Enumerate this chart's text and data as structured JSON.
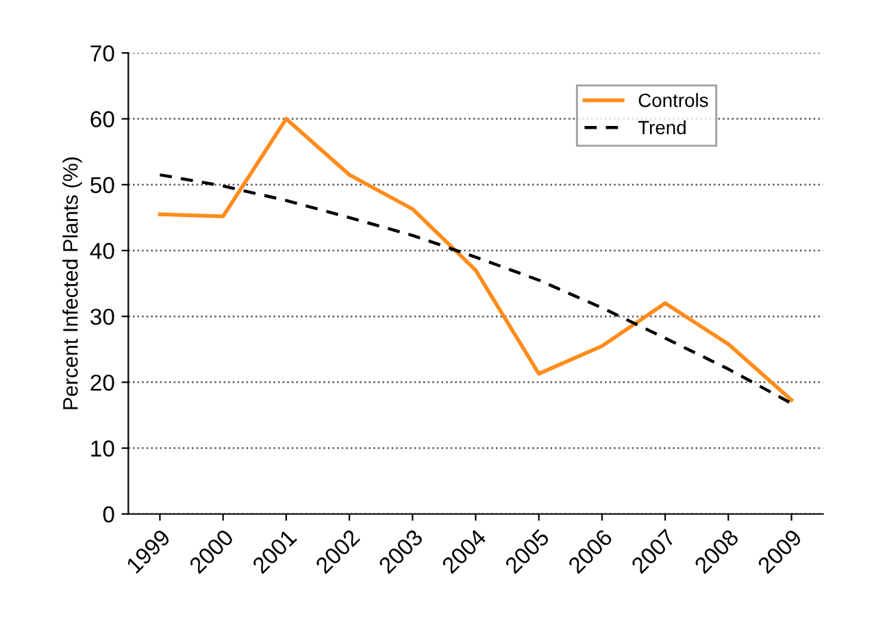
{
  "chart_data": {
    "type": "line",
    "ylabel": "Percent Infected Plants (%)",
    "categories": [
      "1999",
      "2000",
      "2001",
      "2002",
      "2003",
      "2004",
      "2005",
      "2006",
      "2007",
      "2008",
      "2009"
    ],
    "series": [
      {
        "name": "Controls",
        "color": "#ff8c1a",
        "line_style": "solid",
        "values": [
          45.5,
          45.2,
          60,
          51.5,
          46.3,
          37,
          21.3,
          25.5,
          32,
          25.8,
          17.3
        ]
      },
      {
        "name": "Trend",
        "color": "#000000",
        "line_style": "dashed",
        "values": [
          51.5,
          49.8,
          47.6,
          45,
          42.3,
          39,
          35.5,
          31.3,
          26.7,
          22,
          16.8
        ]
      }
    ],
    "ylim": [
      0,
      70
    ],
    "yticks": [
      0,
      10,
      20,
      30,
      40,
      50,
      60,
      70
    ],
    "grid": "y",
    "legend": "top right",
    "marker": "none"
  }
}
